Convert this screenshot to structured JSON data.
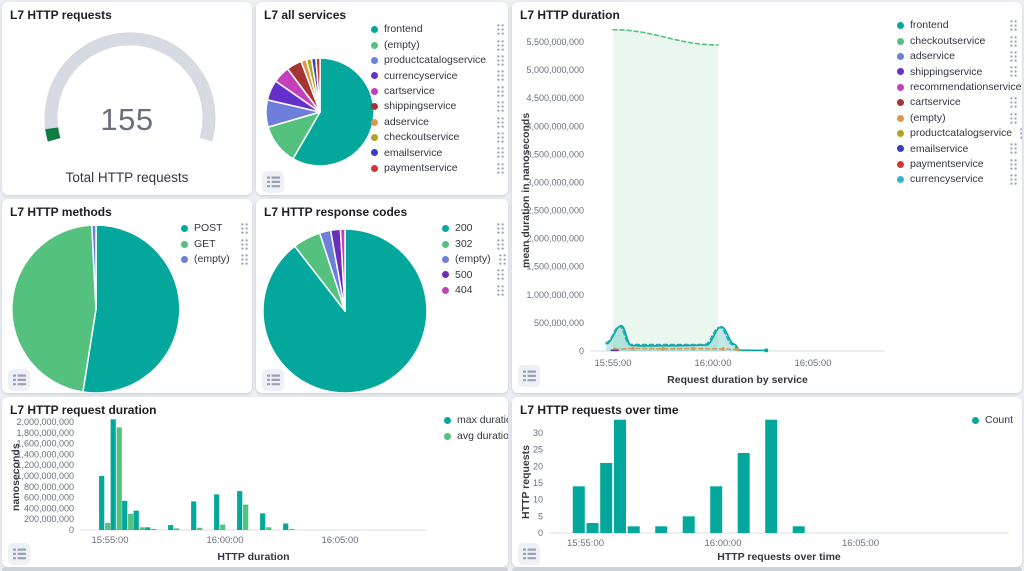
{
  "chart_data": [
    {
      "panel_title": "L7 HTTP requests",
      "type": "gauge",
      "value": 155,
      "label": "Total HTTP requests",
      "track_color": "#d6dae3",
      "accent_color": "#0e7d3f",
      "value_fraction": 0.04
    },
    {
      "panel_title": "L7 all services",
      "type": "pie",
      "slices": [
        {
          "label": "frontend",
          "value": 57.5,
          "color": "#04a79b"
        },
        {
          "label": "(empty)",
          "value": 12,
          "color": "#55c17e"
        },
        {
          "label": "productcatalogservice",
          "value": 8,
          "color": "#6e7fdb"
        },
        {
          "label": "currencyservice",
          "value": 6,
          "color": "#6430c9"
        },
        {
          "label": "cartservice",
          "value": 5,
          "color": "#c340bb"
        },
        {
          "label": "shippingservice",
          "value": 4.5,
          "color": "#a43532"
        },
        {
          "label": "adservice",
          "value": 1.6,
          "color": "#e1964f"
        },
        {
          "label": "checkoutservice",
          "value": 1.5,
          "color": "#b5a31c"
        },
        {
          "label": "emailservice",
          "value": 1.3,
          "color": "#3a3fc1"
        },
        {
          "label": "paymentservice",
          "value": 1.2,
          "color": "#c9392f"
        }
      ]
    },
    {
      "panel_title": "L7 HTTP duration",
      "type": "line",
      "ylabel": "mean duration in nanoseconds",
      "xlabel": "Request duration by service",
      "yticks": [
        0,
        500000000,
        1000000000,
        1500000000,
        2000000000,
        2500000000,
        3000000000,
        3500000000,
        4000000000,
        4500000000,
        5000000000,
        5500000000
      ],
      "ymax": 5750000000,
      "xticks": [
        "15:55:00",
        "16:00:00",
        "16:05:00"
      ],
      "legend": [
        {
          "label": "frontend",
          "color": "#04a79b"
        },
        {
          "label": "checkoutservice",
          "color": "#55c17e"
        },
        {
          "label": "adservice",
          "color": "#6e7fdb"
        },
        {
          "label": "shippingservice",
          "color": "#6430c9"
        },
        {
          "label": "recommendationservice",
          "color": "#c340bb"
        },
        {
          "label": "cartservice",
          "color": "#a43532"
        },
        {
          "label": "(empty)",
          "color": "#e1964f"
        },
        {
          "label": "productcatalogservice",
          "color": "#b5a31c"
        },
        {
          "label": "emailservice",
          "color": "#3a3fc1"
        },
        {
          "label": "paymentservice",
          "color": "#c9392f"
        },
        {
          "label": "currencyservice",
          "color": "#3bb4d0"
        }
      ],
      "series": [
        {
          "name": "checkoutservice",
          "color": "#55c17e",
          "style": "dashed",
          "area": true,
          "fill_opacity": 0.12,
          "points": [
            [
              "15:55:00",
              5720000000
            ],
            [
              "16:00:15",
              5450000000
            ]
          ]
        },
        {
          "name": "frontend",
          "color": "#04a79b",
          "style": "solid",
          "area": true,
          "fill_opacity": 0.25,
          "end_dot": true,
          "points": [
            [
              "15:54:40",
              130000000
            ],
            [
              "15:55:25",
              450000000
            ],
            [
              "15:55:55",
              100000000
            ],
            [
              "15:56:30",
              90000000
            ],
            [
              "15:58:00",
              95000000
            ],
            [
              "15:59:40",
              105000000
            ],
            [
              "16:00:25",
              430000000
            ],
            [
              "16:01:05",
              120000000
            ],
            [
              "16:01:20",
              15000000
            ],
            [
              "16:02:40",
              10000000
            ]
          ]
        },
        {
          "name": "currencyservice",
          "color": "#2aa6ba",
          "style": "dashed",
          "area": false,
          "fill_opacity": 0,
          "points": [
            [
              "15:54:40",
              150000000
            ],
            [
              "15:55:20",
              440000000
            ],
            [
              "15:55:50",
              115000000
            ],
            [
              "15:59:35",
              115000000
            ],
            [
              "16:00:20",
              420000000
            ],
            [
              "16:01:00",
              110000000
            ],
            [
              "16:01:15",
              20000000
            ]
          ]
        },
        {
          "name": "(empty)",
          "color": "#e1964f",
          "style": "dashed",
          "area": false,
          "fill_opacity": 0,
          "markers": true,
          "points": [
            [
              "15:55:05",
              30000000
            ],
            [
              "15:56:00",
              45000000
            ],
            [
              "15:57:30",
              40000000
            ],
            [
              "15:59:00",
              42000000
            ],
            [
              "16:00:30",
              38000000
            ],
            [
              "16:01:15",
              25000000
            ]
          ]
        },
        {
          "name": "shippingservice",
          "color": "#6430c9",
          "style": "solid",
          "area": false,
          "fill_opacity": 0,
          "points": [
            [
              "15:54:55",
              12000000
            ],
            [
              "15:55:15",
              12000000
            ]
          ]
        }
      ]
    },
    {
      "panel_title": "L7 HTTP methods",
      "type": "pie",
      "slices": [
        {
          "label": "POST",
          "value": 52.5,
          "color": "#04a79b"
        },
        {
          "label": "GET",
          "value": 46.7,
          "color": "#55c17e"
        },
        {
          "label": "(empty)",
          "value": 0.8,
          "color": "#6e7fdb"
        }
      ]
    },
    {
      "panel_title": "L7 HTTP response codes",
      "type": "pie",
      "slices": [
        {
          "label": "200",
          "value": 89.5,
          "color": "#04a79b"
        },
        {
          "label": "302",
          "value": 5.5,
          "color": "#55c17e"
        },
        {
          "label": "(empty)",
          "value": 2.2,
          "color": "#6e7fdb"
        },
        {
          "label": "500",
          "value": 1.9,
          "color": "#6a2eb8"
        },
        {
          "label": "404",
          "value": 0.9,
          "color": "#c340bb"
        }
      ]
    },
    {
      "panel_title": "L7 HTTP request duration",
      "type": "bar",
      "ylabel": "nanoseconds",
      "xlabel": "HTTP duration",
      "yticks": [
        0,
        200000000,
        400000000,
        600000000,
        800000000,
        1000000000,
        1200000000,
        1400000000,
        1600000000,
        1800000000,
        2000000000
      ],
      "xticks": [
        "15:55:00",
        "16:00:00",
        "16:05:00"
      ],
      "categories": [
        "15:54:30",
        "15:55:00",
        "15:55:30",
        "15:56:00",
        "15:56:30",
        "15:57:30",
        "15:58:30",
        "15:59:30",
        "16:00:30",
        "16:01:30",
        "16:02:30"
      ],
      "series": [
        {
          "name": "max duration",
          "color": "#04a79b",
          "values": [
            1000000000,
            2050000000,
            540000000,
            360000000,
            50000000,
            90000000,
            530000000,
            660000000,
            720000000,
            310000000,
            120000000
          ]
        },
        {
          "name": "avg duration",
          "color": "#55c17e",
          "values": [
            130000000,
            1900000000,
            300000000,
            50000000,
            20000000,
            30000000,
            40000000,
            100000000,
            470000000,
            50000000,
            20000000
          ]
        }
      ]
    },
    {
      "panel_title": "L7 HTTP requests over time",
      "type": "bar",
      "ylabel": "HTTP requests",
      "xlabel": "HTTP requests over time",
      "yticks": [
        0,
        5,
        10,
        15,
        20,
        25,
        30
      ],
      "xticks": [
        "15:55:00",
        "16:00:00",
        "16:05:00"
      ],
      "categories": [
        "15:54:30",
        "15:55:00",
        "15:55:30",
        "15:56:00",
        "15:56:30",
        "15:57:00",
        "15:57:30",
        "15:58:00",
        "15:58:30",
        "15:59:00",
        "15:59:30",
        "16:00:00",
        "16:00:30",
        "16:01:00",
        "16:01:30",
        "16:02:00",
        "16:02:30"
      ],
      "series": [
        {
          "name": "Count",
          "color": "#04a79b",
          "values": [
            14,
            3,
            21,
            34,
            2,
            0,
            2,
            0,
            5,
            0,
            14,
            0,
            24,
            0,
            34,
            0,
            2
          ]
        }
      ]
    }
  ]
}
